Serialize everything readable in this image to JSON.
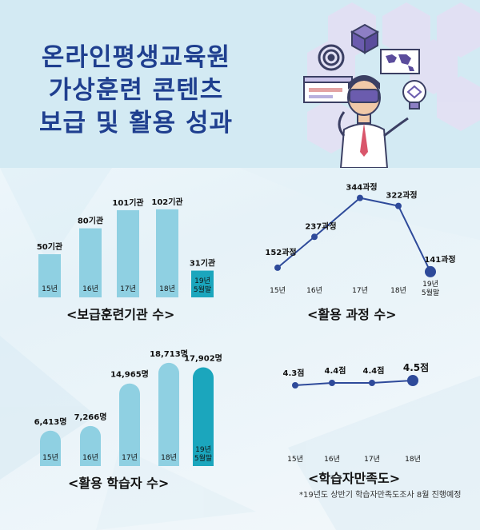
{
  "title": {
    "line1": "온라인평생교육원",
    "line2": "가상훈련 콘텐츠",
    "line3": "보급 및 활용 성과"
  },
  "colors": {
    "title": "#1f3f8f",
    "bar_light": "#8fd0e2",
    "bar_dark": "#1ba6bd",
    "line_stroke": "#2e4a9a",
    "header_bg": "#d3eaf3"
  },
  "illustration": {
    "icons": [
      "vr-headset-person-icon",
      "target-icon",
      "cube-icon",
      "world-map-icon",
      "lightbulb-icon",
      "browser-window-icon"
    ]
  },
  "captions": {
    "institutions": "<보급훈련기관 수>",
    "courses": "<활용 과정 수>",
    "learners": "<활용 학습자 수>",
    "satisfaction": "<학습자만족도>"
  },
  "footnote": "*19년도 상반기 학습자만족도조사 8월 진행예정",
  "chart_data": [
    {
      "id": "institutions",
      "type": "bar",
      "categories": [
        "15년",
        "16년",
        "17년",
        "18년",
        [
          "19년",
          "5월말"
        ]
      ],
      "values": [
        50,
        80,
        101,
        102,
        31
      ],
      "value_labels": [
        "50기관",
        "80기관",
        "101기관",
        "102기관",
        "31기관"
      ],
      "highlight_index": 4,
      "title": "<보급훈련기관 수>"
    },
    {
      "id": "courses",
      "type": "line",
      "categories": [
        "15년",
        "16년",
        "17년",
        "18년",
        [
          "19년",
          "5월말"
        ]
      ],
      "values": [
        152,
        237,
        344,
        322,
        141
      ],
      "value_labels": [
        "152과정",
        "237과정",
        "344과정",
        "322과정",
        "141과정"
      ],
      "highlight_index": 4,
      "title": "<활용 과정 수>"
    },
    {
      "id": "learners",
      "type": "bar",
      "categories": [
        "15년",
        "16년",
        "17년",
        "18년",
        [
          "19년",
          "5월말"
        ]
      ],
      "values": [
        6413,
        7266,
        14965,
        18713,
        17902
      ],
      "value_labels": [
        "6,413명",
        "7,266명",
        "14,965명",
        "18,713명",
        "17,902명"
      ],
      "highlight_index": 4,
      "title": "<활용 학습자 수>"
    },
    {
      "id": "satisfaction",
      "type": "line",
      "categories": [
        "15년",
        "16년",
        "17년",
        "18년"
      ],
      "values": [
        4.3,
        4.4,
        4.4,
        4.5
      ],
      "value_labels": [
        "4.3점",
        "4.4점",
        "4.4점",
        "4.5점"
      ],
      "highlight_index": 3,
      "title": "<학습자만족도>"
    }
  ]
}
